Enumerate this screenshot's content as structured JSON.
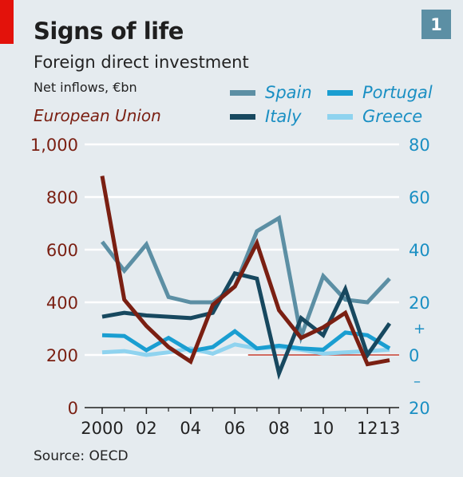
{
  "header": {
    "title": "Signs of life",
    "subtitle": "Foreign direct investment",
    "units": "Net inflows, €bn",
    "badge": "1"
  },
  "source": "Source: OECD",
  "chart_data": {
    "type": "line",
    "title": "Signs of life",
    "subtitle": "Foreign direct investment",
    "x": [
      2000,
      2001,
      2002,
      2003,
      2004,
      2005,
      2006,
      2007,
      2008,
      2009,
      2010,
      2011,
      2012,
      2013
    ],
    "x_tick_labels": [
      "2000",
      "02",
      "04",
      "06",
      "08",
      "10",
      "12",
      "13"
    ],
    "x_tick_values": [
      2000,
      2002,
      2004,
      2006,
      2008,
      2010,
      2012,
      2013
    ],
    "left_axis": {
      "label": "European Union",
      "ylim": [
        0,
        1000
      ],
      "ticks": [
        0,
        200,
        400,
        600,
        800,
        1000
      ],
      "tick_labels": [
        "0",
        "200",
        "400",
        "600",
        "800",
        "1,000"
      ],
      "color": "#7a1f12"
    },
    "right_axis": {
      "ylim": [
        -20,
        80
      ],
      "ticks": [
        -20,
        0,
        20,
        40,
        60,
        80
      ],
      "tick_labels": [
        "20",
        "0",
        "20",
        "40",
        "60",
        "80"
      ],
      "sign_labels": {
        "plus": "+",
        "minus": "–"
      },
      "color": "#1a8fc3"
    },
    "zero_line": {
      "from_x": 2006.6,
      "color": "#c0392b"
    },
    "series": [
      {
        "name": "European Union",
        "axis": "left",
        "color": "#7a1f12",
        "x": [
          2000,
          2001,
          2002,
          2003,
          2004,
          2005,
          2006,
          2007,
          2008,
          2009,
          2010,
          2011,
          2012,
          2013
        ],
        "values": [
          880,
          410,
          310,
          230,
          175,
          390,
          460,
          625,
          370,
          265,
          305,
          360,
          165,
          180
        ]
      },
      {
        "name": "Spain",
        "axis": "right",
        "color": "#5c8fa4",
        "x": [
          2000,
          2001,
          2002,
          2003,
          2004,
          2005,
          2006,
          2007,
          2008,
          2009,
          2010,
          2011,
          2012,
          2013
        ],
        "values": [
          43,
          32,
          42,
          22,
          20,
          20,
          26,
          47,
          52,
          7,
          30,
          21,
          20,
          29
        ]
      },
      {
        "name": "Portugal",
        "axis": "right",
        "color": "#1a9ed1",
        "x": [
          2000,
          2001,
          2002,
          2003,
          2004,
          2005,
          2006,
          2007,
          2008,
          2009,
          2010,
          2011,
          2012,
          2013
        ],
        "values": [
          7.5,
          7.2,
          1.8,
          6.5,
          1.5,
          3.0,
          9.0,
          2.5,
          3.5,
          2.5,
          2.0,
          8.5,
          7.5,
          2.5
        ]
      },
      {
        "name": "Italy",
        "axis": "right",
        "color": "#17485f",
        "x": [
          2000,
          2001,
          2002,
          2003,
          2004,
          2005,
          2006,
          2007,
          2008,
          2009,
          2010,
          2011,
          2012,
          2013
        ],
        "values": [
          14.5,
          16.0,
          15.0,
          14.5,
          14.0,
          16.0,
          31.0,
          29.0,
          -7.0,
          14.0,
          7.5,
          25.0,
          0.0,
          12.0
        ]
      },
      {
        "name": "Greece",
        "axis": "right",
        "color": "#8fd3ef",
        "x": [
          2000,
          2001,
          2002,
          2003,
          2004,
          2005,
          2006,
          2007,
          2008,
          2009,
          2010,
          2011,
          2012,
          2013
        ],
        "values": [
          1.0,
          1.5,
          0.0,
          1.0,
          2.5,
          0.5,
          4.0,
          2.5,
          3.0,
          2.0,
          0.5,
          1.0,
          1.5,
          2.0
        ]
      }
    ],
    "legend": {
      "placement": "top-right",
      "entries": [
        "Spain",
        "Portugal",
        "Italy",
        "Greece"
      ]
    }
  }
}
